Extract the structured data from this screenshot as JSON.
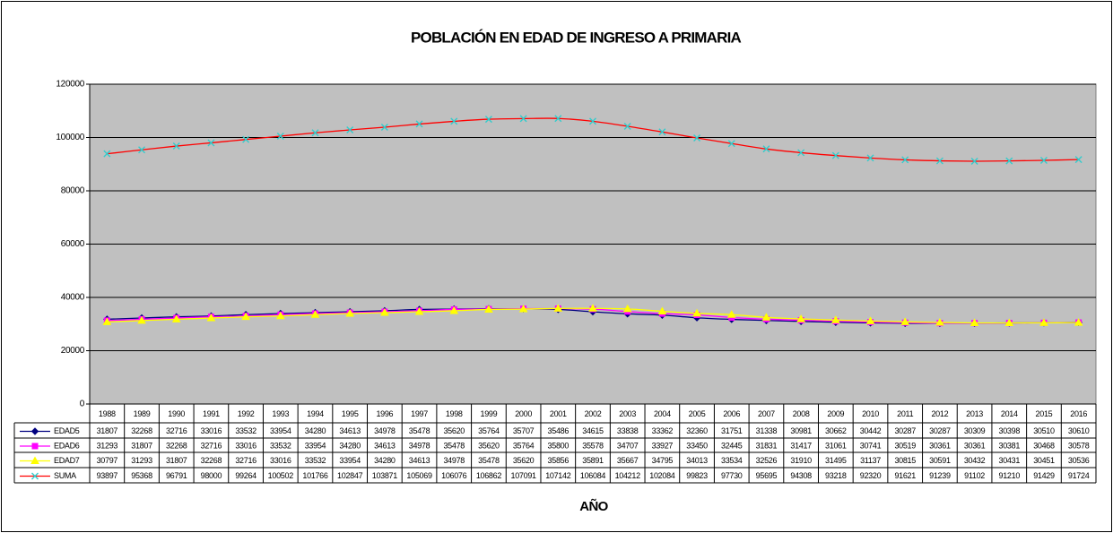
{
  "chart_data": {
    "type": "line",
    "title": "POBLACIÓN EN EDAD DE INGRESO A PRIMARIA",
    "x_label": "AÑO",
    "categories": [
      "1988",
      "1989",
      "1990",
      "1991",
      "1992",
      "1993",
      "1994",
      "1995",
      "1996",
      "1997",
      "1998",
      "1999",
      "2000",
      "2001",
      "2002",
      "2003",
      "2004",
      "2005",
      "2006",
      "2007",
      "2008",
      "2009",
      "2010",
      "2011",
      "2012",
      "2013",
      "2014",
      "2015",
      "2016"
    ],
    "series": [
      {
        "name": "EDAD5",
        "color": "#000080",
        "marker_color": "#000080",
        "marker": "diamond",
        "values": [
          31807,
          32268,
          32716,
          33016,
          33532,
          33954,
          34280,
          34613,
          34978,
          35478,
          35620,
          35764,
          35707,
          35486,
          34615,
          33838,
          33362,
          32360,
          31751,
          31338,
          30981,
          30662,
          30442,
          30287,
          30287,
          30309,
          30398,
          30510,
          30610
        ]
      },
      {
        "name": "EDAD6",
        "color": "#ff00ff",
        "marker_color": "#ff00ff",
        "marker": "square",
        "values": [
          31293,
          31807,
          32268,
          32716,
          33016,
          33532,
          33954,
          34280,
          34613,
          34978,
          35478,
          35620,
          35764,
          35800,
          35578,
          34707,
          33927,
          33450,
          32445,
          31831,
          31417,
          31061,
          30741,
          30519,
          30361,
          30361,
          30381,
          30468,
          30578
        ]
      },
      {
        "name": "EDAD7",
        "color": "#ffff00",
        "marker_color": "#ffff00",
        "marker": "triangle",
        "values": [
          30797,
          31293,
          31807,
          32268,
          32716,
          33016,
          33532,
          33954,
          34280,
          34613,
          34978,
          35478,
          35620,
          35856,
          35891,
          35667,
          34795,
          34013,
          33534,
          32526,
          31910,
          31495,
          31137,
          30815,
          30591,
          30432,
          30431,
          30451,
          30536
        ]
      },
      {
        "name": "SUMA",
        "color": "#ff0000",
        "marker_color": "#33cccc",
        "marker": "x",
        "values": [
          93897,
          95368,
          96791,
          98000,
          99264,
          100502,
          101766,
          102847,
          103871,
          105069,
          106076,
          106862,
          107091,
          107142,
          106084,
          104212,
          102084,
          99823,
          97730,
          95695,
          94308,
          93218,
          92320,
          91621,
          91239,
          91102,
          91210,
          91429,
          91724
        ]
      }
    ],
    "ylim": [
      0,
      120000
    ],
    "yticks": [
      0,
      20000,
      40000,
      60000,
      80000,
      100000,
      120000
    ],
    "grid": true,
    "smooth": true,
    "data_table": true,
    "plot_background": "#c0c0c0"
  }
}
